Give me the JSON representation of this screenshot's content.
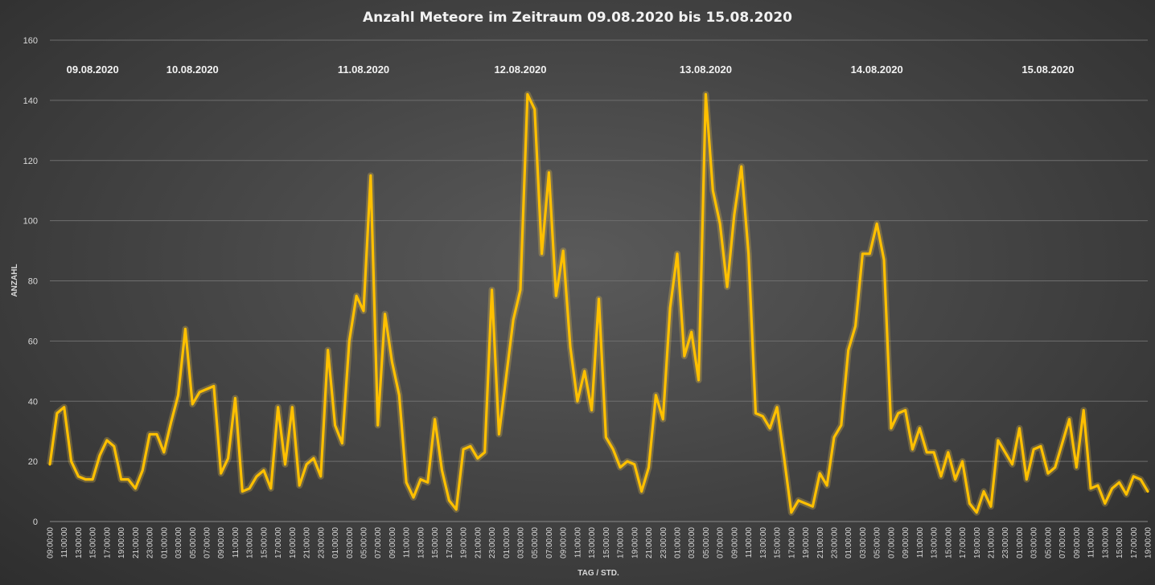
{
  "chart_data": {
    "type": "line",
    "title": "Anzahl Meteore im Zeitraum 09.08.2020 bis 15.08.2020",
    "xlabel": "TAG / STD.",
    "ylabel": "ANZAHL",
    "ylim": [
      0,
      160
    ],
    "yticks": [
      0,
      20,
      40,
      60,
      80,
      100,
      120,
      140,
      160
    ],
    "grid": true,
    "line_color": "#ffc000",
    "x_tick_labels": [
      "09:00:00",
      "11:00:00",
      "13:00:00",
      "15:00:00",
      "17:00:00",
      "19:00:00",
      "21:00:00",
      "23:00:00",
      "01:00:00",
      "03:00:00",
      "05:00:00",
      "07:00:00",
      "09:00:00",
      "11:00:00",
      "13:00:00",
      "15:00:00",
      "17:00:00",
      "19:00:00",
      "21:00:00",
      "23:00:00",
      "01:00:00",
      "03:00:00",
      "05:00:00",
      "07:00:00",
      "09:00:00",
      "11:00:00",
      "13:00:00",
      "15:00:00",
      "17:00:00",
      "19:00:00",
      "21:00:00",
      "23:00:00",
      "01:00:00",
      "03:00:00",
      "05:00:00",
      "07:00:00",
      "09:00:00",
      "11:00:00",
      "13:00:00",
      "15:00:00",
      "17:00:00",
      "19:00:00",
      "21:00:00",
      "23:00:00",
      "01:00:00",
      "03:00:00",
      "05:00:00",
      "07:00:00",
      "09:00:00",
      "11:00:00",
      "13:00:00",
      "15:00:00",
      "17:00:00",
      "19:00:00",
      "21:00:00",
      "23:00:00",
      "01:00:00",
      "03:00:00",
      "05:00:00",
      "07:00:00",
      "09:00:00",
      "11:00:00",
      "13:00:00",
      "15:00:00",
      "17:00:00",
      "19:00:00",
      "21:00:00",
      "23:00:00",
      "01:00:00",
      "03:00:00",
      "05:00:00",
      "07:00:00",
      "09:00:00",
      "11:00:00",
      "13:00:00",
      "15:00:00",
      "17:00:00",
      "19:00:00"
    ],
    "day_labels": [
      {
        "label": "09.08.2020",
        "tick_index": 3
      },
      {
        "label": "10.08.2020",
        "tick_index": 10
      },
      {
        "label": "11.08.2020",
        "tick_index": 22
      },
      {
        "label": "12.08.2020",
        "tick_index": 33
      },
      {
        "label": "13.08.2020",
        "tick_index": 46
      },
      {
        "label": "14.08.2020",
        "tick_index": 58
      },
      {
        "label": "15.08.2020",
        "tick_index": 70
      }
    ],
    "series": [
      {
        "values": [
          19,
          36,
          38,
          20,
          15,
          14,
          14,
          22,
          27,
          25,
          14,
          14,
          11,
          17,
          29,
          29,
          23,
          33,
          42,
          64,
          39,
          43,
          44,
          45,
          16,
          21,
          41,
          10,
          11,
          15,
          17,
          11,
          38,
          19,
          38,
          12,
          19,
          21,
          15,
          57,
          32,
          26,
          60,
          75,
          70,
          115,
          32,
          69,
          53,
          42,
          13,
          8,
          14,
          13,
          34,
          17,
          7,
          4,
          24,
          25,
          21,
          23,
          77,
          29,
          48,
          67,
          77,
          142,
          137,
          89,
          116,
          75,
          90,
          58,
          40,
          50,
          37,
          74,
          28,
          24,
          18,
          20,
          19,
          10,
          18,
          42,
          34,
          71,
          89,
          55,
          63,
          47,
          142,
          110,
          99,
          78,
          102,
          118,
          89,
          36,
          35,
          31,
          38,
          21,
          3,
          7,
          6,
          5,
          16,
          12,
          28,
          32,
          57,
          65,
          89,
          89,
          99,
          87,
          31,
          36,
          37,
          24,
          31,
          23,
          23,
          15,
          23,
          14,
          20,
          6,
          3,
          10,
          5,
          27,
          23,
          19,
          31,
          14,
          24,
          25,
          16,
          18,
          26,
          34,
          18,
          37,
          11,
          12,
          6,
          11,
          13,
          9,
          15,
          14,
          10
        ]
      }
    ]
  }
}
